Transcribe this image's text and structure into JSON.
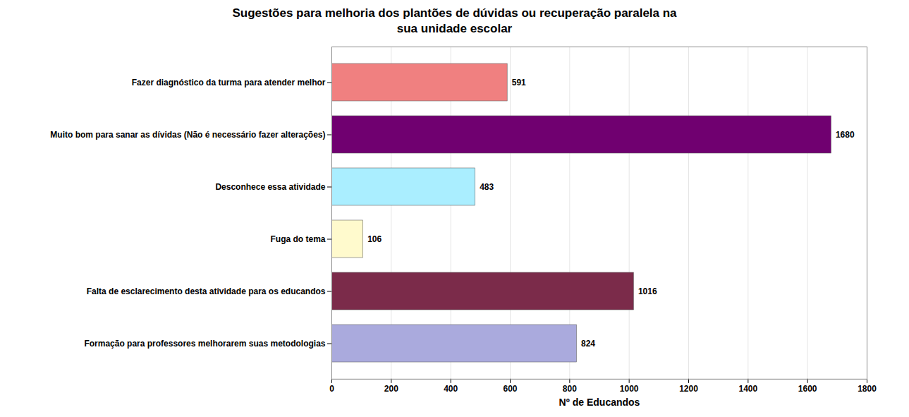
{
  "chart_data": {
    "type": "bar",
    "orientation": "horizontal",
    "title": "Sugestões para melhoria dos plantões de dúvidas ou recuperação paralela na\n sua unidade escolar",
    "categories": [
      "Fazer diagnóstico da turma para atender melhor",
      "Muito bom para sanar as dívidas (Não é necessário fazer alterações)",
      "Desconhece essa atividade",
      "Fuga do tema",
      "Falta de esclarecimento desta atividade para os educandos",
      "Formação para professores melhorarem suas metodologias"
    ],
    "values": [
      591,
      1680,
      483,
      106,
      1016,
      824
    ],
    "colors": [
      "#F08080",
      "#700070",
      "#AAEEFF",
      "#FFFACD",
      "#7B2B4A",
      "#AAAADD"
    ],
    "xlabel": "Nº de Educandos",
    "xlim": [
      0,
      1800
    ],
    "xticks": [
      0,
      200,
      400,
      600,
      800,
      1000,
      1200,
      1400,
      1600,
      1800
    ],
    "grid": true,
    "data_labels": true
  }
}
